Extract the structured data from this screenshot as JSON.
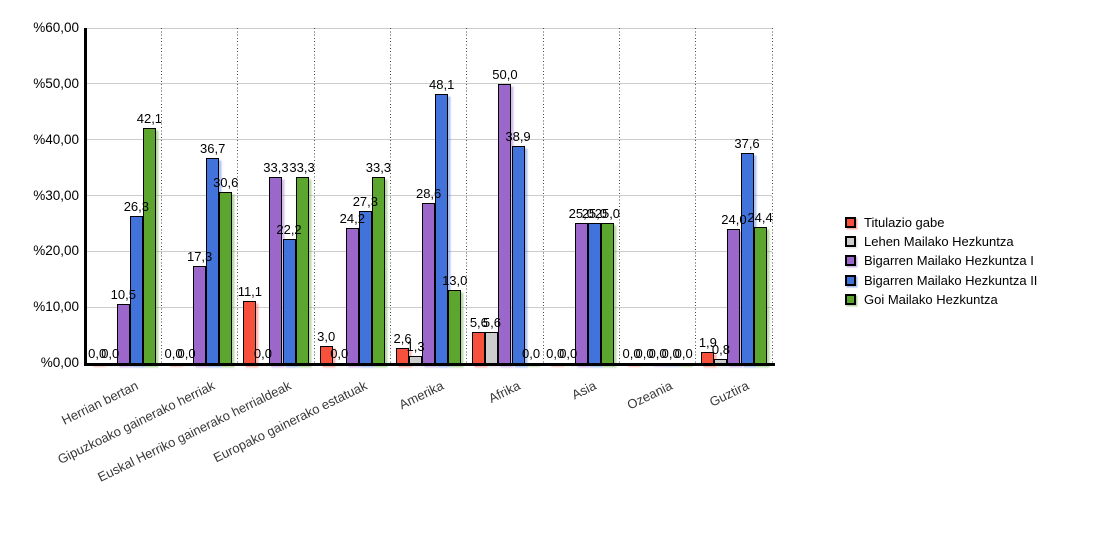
{
  "chart_data": {
    "type": "bar",
    "title": "",
    "categories": [
      "Herrian bertan",
      "Gipuzkoako gainerako herriak",
      "Euskal Herriko gainerako herrialdeak",
      "Europako gainerako estatuak",
      "Amerika",
      "Afrika",
      "Asia",
      "Ozeania",
      "Guztira"
    ],
    "series": [
      {
        "name": "Titulazio gabe",
        "color": "#F7503C",
        "values": [
          0.0,
          0.0,
          11.1,
          3.0,
          2.6,
          5.6,
          0.0,
          0.0,
          1.9
        ]
      },
      {
        "name": "Lehen Mailako Hezkuntza",
        "color": "#CCCCCC",
        "values": [
          0.0,
          0.0,
          0.0,
          0.0,
          1.3,
          5.6,
          0.0,
          0.0,
          0.8
        ]
      },
      {
        "name": "Bigarren Mailako Hezkuntza I",
        "color": "#9B67CB",
        "values": [
          10.5,
          17.3,
          33.3,
          24.2,
          28.6,
          50.0,
          25.0,
          0.0,
          24.0
        ]
      },
      {
        "name": "Bigarren Mailako Hezkuntza II",
        "color": "#4173DB",
        "values": [
          26.3,
          36.7,
          22.2,
          27.3,
          48.1,
          38.9,
          25.0,
          0.0,
          37.6
        ]
      },
      {
        "name": "Goi Mailako Hezkuntza",
        "color": "#5CA52F",
        "values": [
          42.1,
          30.6,
          33.3,
          33.3,
          13.0,
          0.0,
          25.0,
          0.0,
          24.4
        ]
      }
    ],
    "ylim": [
      0,
      60
    ],
    "ytick_step": 10,
    "ytick_labels": [
      "%0,00",
      "%10,00",
      "%20,00",
      "%30,00",
      "%40,00",
      "%50,00",
      "%60,00"
    ],
    "ytick_format": {
      "prefix": "%",
      "decimals": 2,
      "decimal_separator": ","
    },
    "value_label_format": {
      "decimals": 1,
      "decimal_separator": ","
    },
    "grid": {
      "horizontal": "solid light gray",
      "vertical": "dotted category separators"
    },
    "legend_position": "right",
    "xlabel": "",
    "ylabel": ""
  }
}
